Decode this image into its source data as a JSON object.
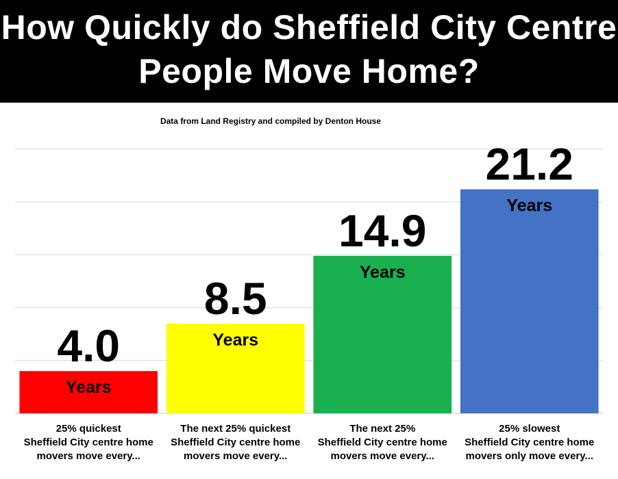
{
  "chart_data": {
    "type": "bar",
    "title": "How Quickly do Sheffield City Centre\nPeople Move Home?",
    "subtitle": "Data from Land Registry and compiled by Denton House",
    "categories": [
      "25% quickest\nSheffield City centre home\nmovers move every...",
      "The next 25% quickest\nSheffield City centre home\nmovers move every...",
      "The next 25%\nSheffield City centre home\nmovers move every...",
      "25% slowest\nSheffield City centre home\nmovers only move every..."
    ],
    "values": [
      4.0,
      8.5,
      14.9,
      21.2
    ],
    "data_labels": [
      "4.0",
      "8.5",
      "14.9",
      "21.2"
    ],
    "unit_label": "Years",
    "colors": [
      "#ff0000",
      "#ffff00",
      "#1aaf4f",
      "#4472c4"
    ],
    "ylim": [
      0,
      25
    ],
    "gridlines": [
      5,
      10,
      15,
      20,
      25
    ],
    "grid": true,
    "y_axis_labels_shown": false,
    "legend": "none",
    "xlabel": "",
    "ylabel": ""
  }
}
